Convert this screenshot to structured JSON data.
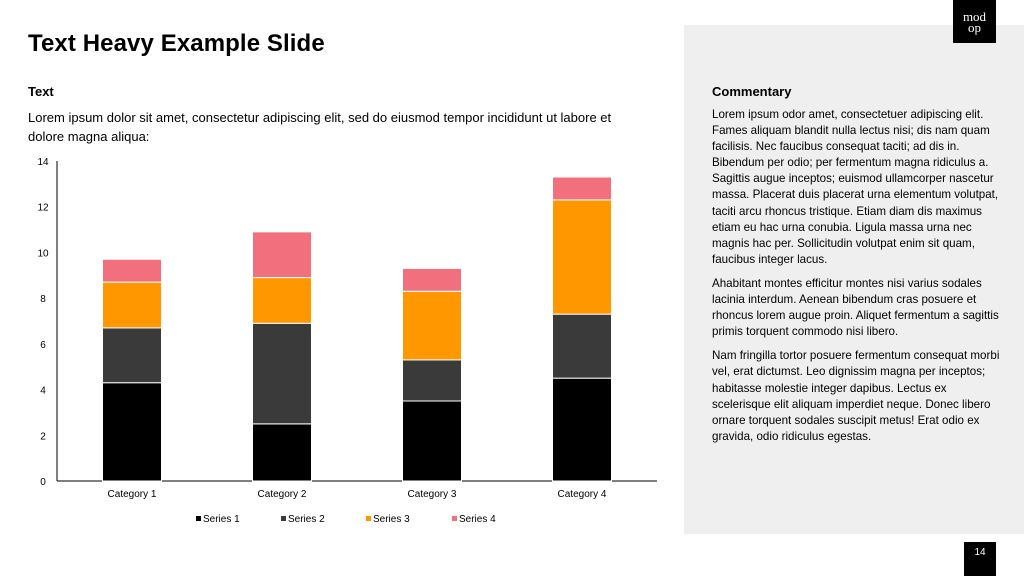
{
  "slide": {
    "title": "Text Heavy Example Slide",
    "text_heading": "Text",
    "text_body": "Lorem ipsum dolor sit amet, consectetur adipiscing elit, sed do eiusmod tempor incididunt ut labore et dolore magna aliqua:",
    "page_number": "14"
  },
  "logo": {
    "line1": "mod",
    "line2": "op"
  },
  "commentary": {
    "heading": "Commentary",
    "paragraphs": [
      "Lorem ipsum odor amet, consectetuer adipiscing elit. Fames aliquam blandit nulla lectus nisi; dis nam quam facilisis. Nec faucibus consequat taciti; ad dis in. Bibendum per odio; per fermentum magna ridiculus a. Sagittis augue inceptos; euismod ullamcorper nascetur massa. Placerat duis placerat urna elementum volutpat, taciti arcu rhoncus tristique. Etiam diam dis maximus etiam eu hac urna conubia. Ligula massa urna nec magnis hac per. Sollicitudin volutpat enim sit quam, faucibus integer lacus.",
      "Ahabitant montes efficitur montes nisi varius sodales lacinia interdum. Aenean bibendum cras posuere et rhoncus lorem augue proin. Aliquet fermentum a sagittis primis torquent commodo nisi libero.",
      "Nam fringilla tortor posuere fermentum consequat morbi vel, erat dictumst. Leo dignissim magna per inceptos; habitasse molestie integer dapibus. Lectus ex scelerisque elit aliquam imperdiet neque. Donec libero ornare torquent sodales suscipit metus! Erat odio ex gravida, odio ridiculus egestas."
    ]
  },
  "chart_data": {
    "type": "bar",
    "stacked": true,
    "categories": [
      "Category 1",
      "Category 2",
      "Category 3",
      "Category 4"
    ],
    "series": [
      {
        "name": "Series 1",
        "color": "#000000",
        "values": [
          4.3,
          2.5,
          3.5,
          4.5
        ]
      },
      {
        "name": "Series 2",
        "color": "#3a3a3a",
        "values": [
          2.4,
          4.4,
          1.8,
          2.8
        ]
      },
      {
        "name": "Series 3",
        "color": "#ff9800",
        "values": [
          2.0,
          2.0,
          3.0,
          5.0
        ]
      },
      {
        "name": "Series 4",
        "color": "#f2707d",
        "values": [
          1.0,
          2.0,
          1.0,
          1.0
        ]
      }
    ],
    "ylim": [
      0,
      14
    ],
    "yticks": [
      0,
      2,
      4,
      6,
      8,
      10,
      12,
      14
    ],
    "grid": false,
    "legend": "bottom",
    "title": "",
    "xlabel": "",
    "ylabel": ""
  }
}
